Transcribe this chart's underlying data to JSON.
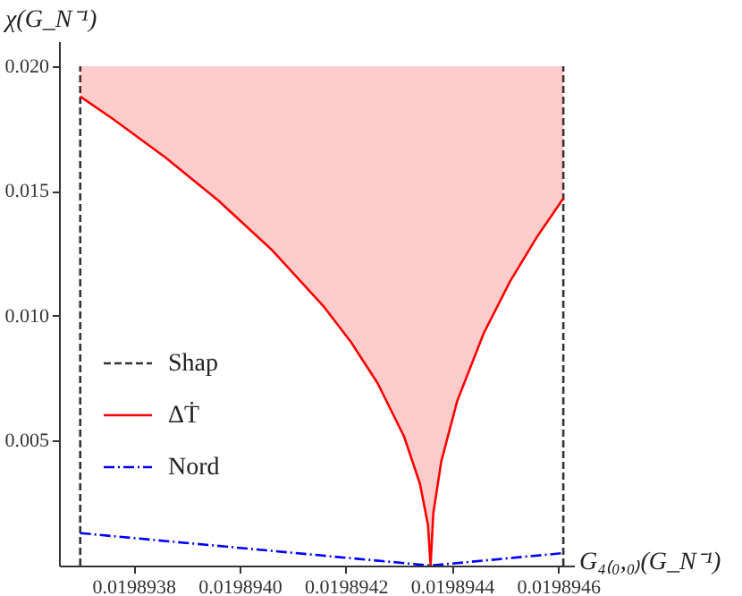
{
  "chart_data": {
    "type": "line",
    "xlabel": "G₄₍₀,₀₎(G_N⁻¹)",
    "ylabel": "χ(G_N⁻¹)",
    "xlim": [
      0.01989366,
      0.01989463
    ],
    "ylim": [
      0,
      0.021
    ],
    "xticks": [
      0.0198938,
      {
        "value": 0.019894,
        "label": "0.0198940"
      },
      0.0198942,
      0.0198944,
      0.0198946
    ],
    "yticks": [
      0.005,
      {
        "value": 0.01,
        "label": "0.010"
      },
      0.015,
      {
        "value": 0.02,
        "label": "0.020"
      }
    ],
    "grid": false,
    "legend": "left",
    "marker": "none",
    "series": [
      {
        "name": "Shap",
        "color": "#333333",
        "line_style": "dashed",
        "x": [
          0.0198937,
          0.0198937,
          null,
          0.01989461,
          0.01989461
        ],
        "values": [
          0,
          0.02,
          null,
          0,
          0.02
        ]
      },
      {
        "name": "ΔṪ",
        "color": "#ff0000",
        "line_style": "solid",
        "x": [
          0.0198937,
          0.01989376,
          0.01989386,
          0.01989396,
          0.01989406,
          0.01989416,
          0.01989421,
          0.01989426,
          0.01989431,
          0.01989434,
          0.019894355,
          0.01989436,
          0.019894365,
          0.01989438,
          0.01989441,
          0.01989446,
          0.01989451,
          0.01989456,
          0.01989461
        ],
        "values": [
          0.01878,
          0.01791,
          0.01635,
          0.01462,
          0.01266,
          0.01034,
          0.00895,
          0.00731,
          0.00517,
          0.00327,
          0.00163,
          0,
          0.00208,
          0.00416,
          0.00658,
          0.0093,
          0.01139,
          0.01315,
          0.0147
        ],
        "lower": [
          0.01878,
          0.01791,
          0.01635,
          0.01462,
          0.01266,
          0.01034,
          0.00895,
          0.00731,
          0.00517,
          0.00327,
          0.00163,
          0,
          0.00208,
          0.00416,
          0.00658,
          0.0093,
          0.01139,
          0.01315,
          0.0147
        ],
        "upper": [
          0.02,
          0.02,
          0.02,
          0.02,
          0.02,
          0.02,
          0.02,
          0.02,
          0.02,
          0.02,
          0.02,
          0.02,
          0.02,
          0.02,
          0.02,
          0.02,
          0.02,
          0.02,
          0.02
        ]
      },
      {
        "name": "Nord",
        "color": "#0000ff",
        "line_style": "dotted",
        "x": [
          0.0198937,
          0.01989436,
          0.01989461
        ],
        "values": [
          0.0013,
          0,
          0.0005
        ]
      }
    ]
  }
}
